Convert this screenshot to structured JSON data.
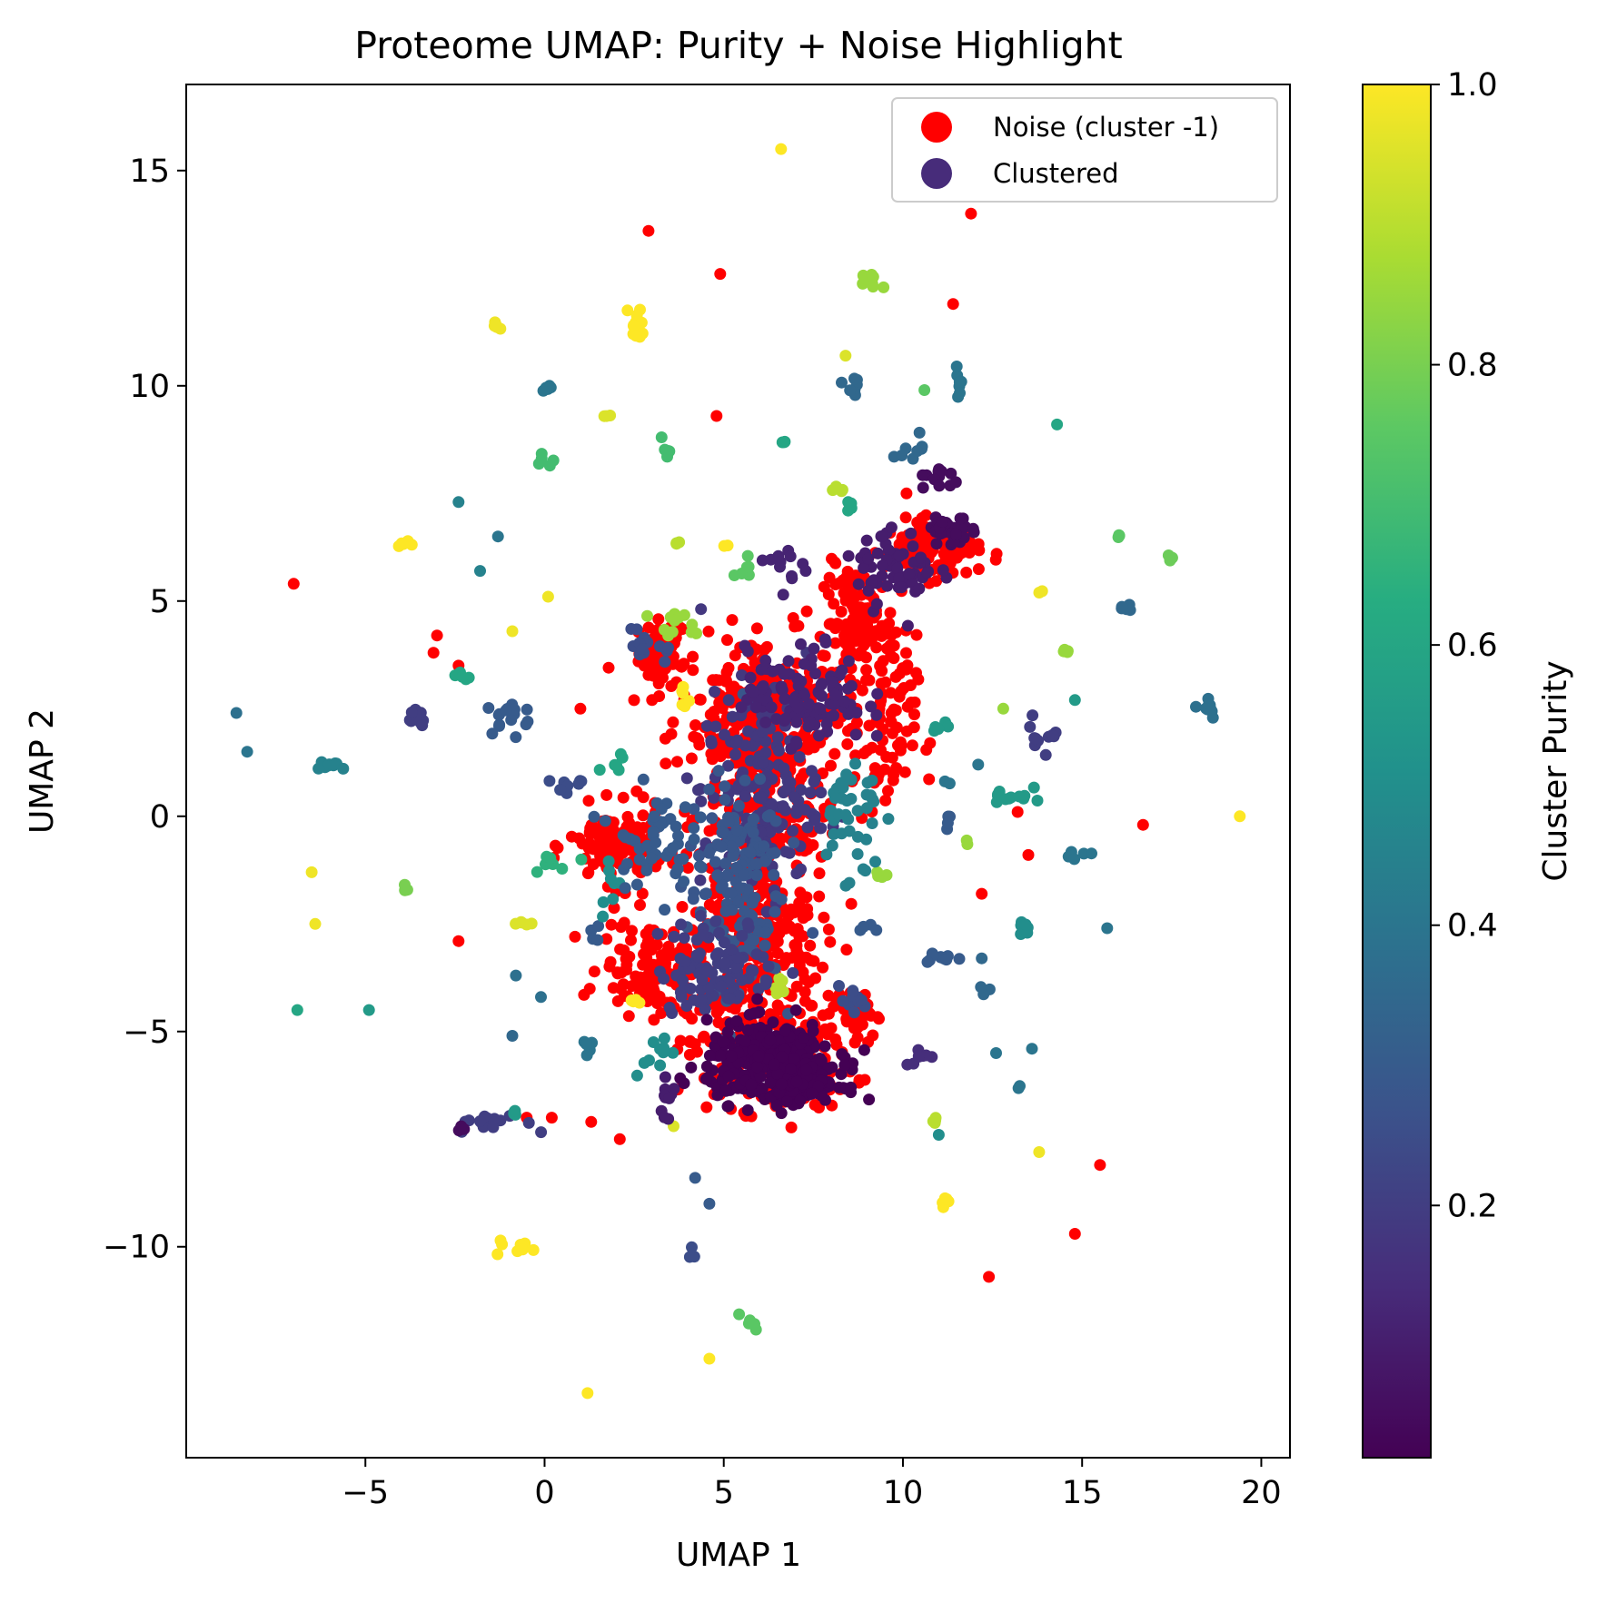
{
  "chart_data": {
    "type": "scatter",
    "title": "Proteome UMAP: Purity + Noise Highlight",
    "xlabel": "UMAP 1",
    "ylabel": "UMAP 2",
    "xlim": [
      -10.0,
      20.8
    ],
    "ylim": [
      -14.9,
      17.0
    ],
    "xticks": [
      -5,
      0,
      5,
      10,
      15,
      20
    ],
    "yticks": [
      -10,
      -5,
      0,
      5,
      10,
      15
    ],
    "xtick_labels": [
      "−5",
      "0",
      "5",
      "10",
      "15",
      "20"
    ],
    "ytick_labels": [
      "−10",
      "−5",
      "0",
      "5",
      "10",
      "15"
    ],
    "grid": false,
    "legend_position": "top-right",
    "legend": [
      {
        "label": "Noise (cluster -1)",
        "color": "#ff0000"
      },
      {
        "label": "Clustered",
        "color": "#472c7a"
      }
    ],
    "colorbar": {
      "label": "Cluster Purity",
      "range": [
        0.02,
        1.0
      ],
      "ticks": [
        0.2,
        0.4,
        0.6,
        0.8,
        1.0
      ],
      "tick_labels": [
        "0.2",
        "0.4",
        "0.6",
        "0.8",
        "1.0"
      ],
      "colormap": "viridis"
    },
    "noise_color": "#ff0000",
    "noise_regions": [
      {
        "cx": 3.3,
        "cy": 3.8,
        "rx": 0.6,
        "ry": 0.7,
        "n": 60
      },
      {
        "cx": 6.0,
        "cy": 2.5,
        "rx": 2.2,
        "ry": 1.5,
        "n": 220
      },
      {
        "cx": 6.2,
        "cy": 0.0,
        "rx": 1.8,
        "ry": 2.2,
        "n": 260
      },
      {
        "cx": 6.0,
        "cy": -3.0,
        "rx": 1.5,
        "ry": 1.5,
        "n": 200
      },
      {
        "cx": 6.3,
        "cy": -5.5,
        "rx": 2.1,
        "ry": 1.2,
        "n": 240
      },
      {
        "cx": 8.8,
        "cy": 4.5,
        "rx": 0.9,
        "ry": 1.2,
        "n": 120
      },
      {
        "cx": 10.8,
        "cy": 6.2,
        "rx": 1.2,
        "ry": 0.6,
        "n": 120
      },
      {
        "cx": 2.0,
        "cy": -0.7,
        "rx": 1.2,
        "ry": 0.8,
        "n": 120
      },
      {
        "cx": 3.0,
        "cy": -3.5,
        "rx": 1.3,
        "ry": 1.0,
        "n": 110
      },
      {
        "cx": 8.7,
        "cy": -4.5,
        "rx": 0.5,
        "ry": 0.5,
        "n": 40
      },
      {
        "cx": 9.5,
        "cy": 2.0,
        "rx": 0.8,
        "ry": 2.0,
        "n": 80
      }
    ],
    "noise_points": [
      {
        "x": -7.0,
        "y": 5.4
      },
      {
        "x": -3.0,
        "y": 4.2
      },
      {
        "x": -3.1,
        "y": 3.8
      },
      {
        "x": -2.4,
        "y": 3.5
      },
      {
        "x": -2.4,
        "y": -2.9
      },
      {
        "x": 2.9,
        "y": 13.6
      },
      {
        "x": 4.9,
        "y": 12.6
      },
      {
        "x": 4.8,
        "y": 9.3
      },
      {
        "x": 11.4,
        "y": 11.9
      },
      {
        "x": 11.9,
        "y": 14.0
      },
      {
        "x": 8.1,
        "y": 5.9
      },
      {
        "x": 10.1,
        "y": 7.5
      },
      {
        "x": 16.7,
        "y": -0.2
      },
      {
        "x": 13.5,
        "y": -0.9
      },
      {
        "x": 13.2,
        "y": 0.1
      },
      {
        "x": 12.2,
        "y": -1.8
      },
      {
        "x": 15.5,
        "y": -8.1
      },
      {
        "x": 14.8,
        "y": -9.7
      },
      {
        "x": 12.4,
        "y": -10.7
      },
      {
        "x": 1.3,
        "y": -7.1
      },
      {
        "x": 2.1,
        "y": -7.5
      },
      {
        "x": 0.2,
        "y": -7.0
      },
      {
        "x": -0.5,
        "y": -7.0
      },
      {
        "x": 5.2,
        "y": -6.8
      },
      {
        "x": 1.0,
        "y": 2.5
      },
      {
        "x": 3.0,
        "y": 2.7
      }
    ],
    "clustered_groups": [
      {
        "cx": 6.6,
        "cy": 15.5,
        "rx": 0.05,
        "ry": 0.05,
        "n": 1,
        "purity": 1.0
      },
      {
        "cx": 2.6,
        "cy": 11.4,
        "rx": 0.2,
        "ry": 0.4,
        "n": 12,
        "purity": 1.0
      },
      {
        "cx": -1.4,
        "cy": 11.4,
        "rx": 0.2,
        "ry": 0.1,
        "n": 5,
        "purity": 0.98
      },
      {
        "cx": 9.0,
        "cy": 12.3,
        "rx": 0.4,
        "ry": 0.3,
        "n": 8,
        "purity": 0.85
      },
      {
        "cx": 0.1,
        "cy": 10.0,
        "rx": 0.15,
        "ry": 0.15,
        "n": 5,
        "purity": 0.4
      },
      {
        "cx": 8.6,
        "cy": 10.0,
        "rx": 0.3,
        "ry": 0.4,
        "n": 8,
        "purity": 0.35
      },
      {
        "cx": 11.6,
        "cy": 10.1,
        "rx": 0.2,
        "ry": 0.3,
        "n": 8,
        "purity": 0.4
      },
      {
        "cx": 10.6,
        "cy": 9.9,
        "rx": 0.05,
        "ry": 0.05,
        "n": 1,
        "purity": 0.75
      },
      {
        "cx": 8.4,
        "cy": 10.7,
        "rx": 0.05,
        "ry": 0.05,
        "n": 1,
        "purity": 0.95
      },
      {
        "cx": 1.8,
        "cy": 9.3,
        "rx": 0.1,
        "ry": 0.05,
        "n": 3,
        "purity": 0.95
      },
      {
        "cx": 3.4,
        "cy": 8.5,
        "rx": 0.1,
        "ry": 0.3,
        "n": 6,
        "purity": 0.7
      },
      {
        "cx": 0.0,
        "cy": 8.3,
        "rx": 0.2,
        "ry": 0.15,
        "n": 5,
        "purity": 0.7
      },
      {
        "cx": 6.6,
        "cy": 8.7,
        "rx": 0.15,
        "ry": 0.05,
        "n": 3,
        "purity": 0.6
      },
      {
        "cx": 14.3,
        "cy": 9.1,
        "rx": 0.05,
        "ry": 0.05,
        "n": 1,
        "purity": 0.6
      },
      {
        "cx": 10.3,
        "cy": 8.6,
        "rx": 0.3,
        "ry": 0.3,
        "n": 8,
        "purity": 0.35
      },
      {
        "cx": 11.0,
        "cy": 7.8,
        "rx": 0.5,
        "ry": 0.3,
        "n": 12,
        "purity": 0.05
      },
      {
        "cx": 8.2,
        "cy": 7.6,
        "rx": 0.2,
        "ry": 0.1,
        "n": 4,
        "purity": 0.9
      },
      {
        "cx": 8.5,
        "cy": 7.3,
        "rx": 0.15,
        "ry": 0.15,
        "n": 4,
        "purity": 0.6
      },
      {
        "cx": -2.4,
        "cy": 7.3,
        "rx": 0.05,
        "ry": 0.05,
        "n": 1,
        "purity": 0.45
      },
      {
        "cx": -3.9,
        "cy": 6.3,
        "rx": 0.2,
        "ry": 0.15,
        "n": 6,
        "purity": 1.0
      },
      {
        "cx": -1.3,
        "cy": 6.5,
        "rx": 0.05,
        "ry": 0.05,
        "n": 1,
        "purity": 0.4
      },
      {
        "cx": 3.7,
        "cy": 6.4,
        "rx": 0.1,
        "ry": 0.1,
        "n": 3,
        "purity": 0.9
      },
      {
        "cx": 5.0,
        "cy": 6.3,
        "rx": 0.1,
        "ry": 0.05,
        "n": 2,
        "purity": 1.0
      },
      {
        "cx": 5.6,
        "cy": 5.7,
        "rx": 0.3,
        "ry": 0.3,
        "n": 6,
        "purity": 0.75
      },
      {
        "cx": 6.8,
        "cy": 5.8,
        "rx": 0.5,
        "ry": 0.5,
        "n": 12,
        "purity": 0.12
      },
      {
        "cx": -1.8,
        "cy": 5.7,
        "rx": 0.05,
        "ry": 0.05,
        "n": 1,
        "purity": 0.45
      },
      {
        "cx": 0.1,
        "cy": 5.1,
        "rx": 0.05,
        "ry": 0.05,
        "n": 1,
        "purity": 0.98
      },
      {
        "cx": -0.9,
        "cy": 4.3,
        "rx": 0.05,
        "ry": 0.05,
        "n": 1,
        "purity": 0.98
      },
      {
        "cx": 13.9,
        "cy": 5.2,
        "rx": 0.1,
        "ry": 0.05,
        "n": 2,
        "purity": 0.98
      },
      {
        "cx": 16.1,
        "cy": 6.5,
        "rx": 0.1,
        "ry": 0.1,
        "n": 3,
        "purity": 0.75
      },
      {
        "cx": 17.5,
        "cy": 6.0,
        "rx": 0.15,
        "ry": 0.1,
        "n": 3,
        "purity": 0.78
      },
      {
        "cx": 16.2,
        "cy": 4.9,
        "rx": 0.2,
        "ry": 0.2,
        "n": 5,
        "purity": 0.35
      },
      {
        "cx": 14.5,
        "cy": 3.8,
        "rx": 0.2,
        "ry": 0.1,
        "n": 4,
        "purity": 0.85
      },
      {
        "cx": 14.8,
        "cy": 2.7,
        "rx": 0.05,
        "ry": 0.05,
        "n": 1,
        "purity": 0.55
      },
      {
        "cx": 12.8,
        "cy": 2.5,
        "rx": 0.05,
        "ry": 0.05,
        "n": 1,
        "purity": 0.85
      },
      {
        "cx": 18.4,
        "cy": 2.6,
        "rx": 0.4,
        "ry": 0.3,
        "n": 10,
        "purity": 0.38
      },
      {
        "cx": 19.4,
        "cy": 0.0,
        "rx": 0.05,
        "ry": 0.05,
        "n": 1,
        "purity": 1.0
      },
      {
        "cx": -8.6,
        "cy": 2.4,
        "rx": 0.05,
        "ry": 0.05,
        "n": 1,
        "purity": 0.38
      },
      {
        "cx": -8.3,
        "cy": 1.5,
        "rx": 0.05,
        "ry": 0.05,
        "n": 1,
        "purity": 0.4
      },
      {
        "cx": -6.0,
        "cy": 1.2,
        "rx": 0.5,
        "ry": 0.1,
        "n": 12,
        "purity": 0.45
      },
      {
        "cx": -3.6,
        "cy": 2.3,
        "rx": 0.4,
        "ry": 0.3,
        "n": 10,
        "purity": 0.2
      },
      {
        "cx": -2.3,
        "cy": 3.2,
        "rx": 0.2,
        "ry": 0.15,
        "n": 5,
        "purity": 0.6
      },
      {
        "cx": -0.9,
        "cy": 2.4,
        "rx": 0.6,
        "ry": 0.4,
        "n": 16,
        "purity": 0.3
      },
      {
        "cx": -3.8,
        "cy": -1.7,
        "rx": 0.1,
        "ry": 0.1,
        "n": 3,
        "purity": 0.8
      },
      {
        "cx": -6.5,
        "cy": -1.3,
        "rx": 0.05,
        "ry": 0.05,
        "n": 1,
        "purity": 0.98
      },
      {
        "cx": -6.4,
        "cy": -2.5,
        "rx": 0.05,
        "ry": 0.05,
        "n": 1,
        "purity": 0.98
      },
      {
        "cx": -6.9,
        "cy": -4.5,
        "rx": 0.05,
        "ry": 0.05,
        "n": 1,
        "purity": 0.6
      },
      {
        "cx": -4.9,
        "cy": -4.5,
        "rx": 0.05,
        "ry": 0.05,
        "n": 1,
        "purity": 0.55
      },
      {
        "cx": -0.6,
        "cy": -2.5,
        "rx": 0.3,
        "ry": 0.05,
        "n": 6,
        "purity": 0.95
      },
      {
        "cx": -0.8,
        "cy": -3.7,
        "rx": 0.05,
        "ry": 0.05,
        "n": 1,
        "purity": 0.38
      },
      {
        "cx": -0.1,
        "cy": -4.2,
        "rx": 0.05,
        "ry": 0.05,
        "n": 1,
        "purity": 0.38
      },
      {
        "cx": -0.9,
        "cy": -5.1,
        "rx": 0.05,
        "ry": 0.05,
        "n": 1,
        "purity": 0.35
      },
      {
        "cx": -1.5,
        "cy": -7.1,
        "rx": 0.9,
        "ry": 0.2,
        "n": 18,
        "purity": 0.2
      },
      {
        "cx": -0.8,
        "cy": -6.9,
        "rx": 0.2,
        "ry": 0.1,
        "n": 4,
        "purity": 0.55
      },
      {
        "cx": -2.3,
        "cy": -7.3,
        "rx": 0.1,
        "ry": 0.1,
        "n": 3,
        "purity": 0.05
      },
      {
        "cx": -0.8,
        "cy": -10.0,
        "rx": 0.5,
        "ry": 0.2,
        "n": 8,
        "purity": 1.0
      },
      {
        "cx": 1.2,
        "cy": -13.4,
        "rx": 0.05,
        "ry": 0.05,
        "n": 1,
        "purity": 1.0
      },
      {
        "cx": 4.6,
        "cy": -12.6,
        "rx": 0.05,
        "ry": 0.05,
        "n": 1,
        "purity": 1.0
      },
      {
        "cx": 5.8,
        "cy": -11.8,
        "rx": 0.2,
        "ry": 0.2,
        "n": 5,
        "purity": 0.75
      },
      {
        "cx": 4.2,
        "cy": -10.1,
        "rx": 0.2,
        "ry": 0.15,
        "n": 3,
        "purity": 0.25
      },
      {
        "cx": 4.2,
        "cy": -8.4,
        "rx": 0.05,
        "ry": 0.05,
        "n": 1,
        "purity": 0.3
      },
      {
        "cx": 4.6,
        "cy": -9.0,
        "rx": 0.05,
        "ry": 0.05,
        "n": 1,
        "purity": 0.3
      },
      {
        "cx": 3.6,
        "cy": -7.2,
        "rx": 0.05,
        "ry": 0.05,
        "n": 1,
        "purity": 0.95
      },
      {
        "cx": 11.1,
        "cy": -8.9,
        "rx": 0.2,
        "ry": 0.2,
        "n": 6,
        "purity": 1.0
      },
      {
        "cx": 13.8,
        "cy": -7.8,
        "rx": 0.05,
        "ry": 0.05,
        "n": 1,
        "purity": 0.98
      },
      {
        "cx": 10.9,
        "cy": -7.1,
        "rx": 0.2,
        "ry": 0.1,
        "n": 4,
        "purity": 0.9
      },
      {
        "cx": 11.0,
        "cy": -7.4,
        "rx": 0.05,
        "ry": 0.05,
        "n": 1,
        "purity": 0.5
      },
      {
        "cx": 10.6,
        "cy": -5.6,
        "rx": 0.5,
        "ry": 0.2,
        "n": 8,
        "purity": 0.15
      },
      {
        "cx": 12.6,
        "cy": -5.5,
        "rx": 0.05,
        "ry": 0.05,
        "n": 1,
        "purity": 0.4
      },
      {
        "cx": 13.6,
        "cy": -5.4,
        "rx": 0.05,
        "ry": 0.05,
        "n": 1,
        "purity": 0.4
      },
      {
        "cx": 13.3,
        "cy": -6.3,
        "rx": 0.15,
        "ry": 0.05,
        "n": 2,
        "purity": 0.4
      },
      {
        "cx": 12.3,
        "cy": -4.0,
        "rx": 0.15,
        "ry": 0.15,
        "n": 3,
        "purity": 0.35
      },
      {
        "cx": 12.2,
        "cy": -3.3,
        "rx": 0.05,
        "ry": 0.05,
        "n": 1,
        "purity": 0.35
      },
      {
        "cx": 11.0,
        "cy": -3.3,
        "rx": 0.6,
        "ry": 0.15,
        "n": 10,
        "purity": 0.3
      },
      {
        "cx": 13.4,
        "cy": -2.5,
        "rx": 0.2,
        "ry": 0.2,
        "n": 6,
        "purity": 0.5
      },
      {
        "cx": 15.7,
        "cy": -2.6,
        "rx": 0.05,
        "ry": 0.05,
        "n": 1,
        "purity": 0.4
      },
      {
        "cx": 14.9,
        "cy": -0.9,
        "rx": 0.4,
        "ry": 0.2,
        "n": 6,
        "purity": 0.4
      },
      {
        "cx": 13.0,
        "cy": 0.5,
        "rx": 0.5,
        "ry": 0.3,
        "n": 12,
        "purity": 0.55
      },
      {
        "cx": 13.7,
        "cy": 1.8,
        "rx": 0.3,
        "ry": 0.4,
        "n": 8,
        "purity": 0.2
      },
      {
        "cx": 14.2,
        "cy": 1.9,
        "rx": 0.1,
        "ry": 0.2,
        "n": 4,
        "purity": 0.2
      },
      {
        "cx": 11.3,
        "cy": 0.8,
        "rx": 0.1,
        "ry": 0.05,
        "n": 2,
        "purity": 0.4
      },
      {
        "cx": 12.1,
        "cy": 1.2,
        "rx": 0.05,
        "ry": 0.05,
        "n": 1,
        "purity": 0.4
      },
      {
        "cx": 11.8,
        "cy": -0.6,
        "rx": 0.1,
        "ry": 0.05,
        "n": 2,
        "purity": 0.85
      },
      {
        "cx": 11.3,
        "cy": 0.0,
        "rx": 0.2,
        "ry": 0.2,
        "n": 4,
        "purity": 0.3
      },
      {
        "cx": 11.0,
        "cy": 2.1,
        "rx": 0.3,
        "ry": 0.1,
        "n": 5,
        "purity": 0.55
      },
      {
        "cx": 9.4,
        "cy": -1.4,
        "rx": 0.2,
        "ry": 0.1,
        "n": 4,
        "purity": 0.85
      },
      {
        "cx": 9.0,
        "cy": -2.6,
        "rx": 0.3,
        "ry": 0.1,
        "n": 4,
        "purity": 0.3
      },
      {
        "cx": 8.6,
        "cy": -4.3,
        "rx": 0.5,
        "ry": 0.3,
        "n": 10,
        "purity": 0.25
      },
      {
        "cx": 6.4,
        "cy": -3.9,
        "rx": 0.3,
        "ry": 0.3,
        "n": 8,
        "purity": 0.9
      },
      {
        "cx": 2.5,
        "cy": -4.3,
        "rx": 0.2,
        "ry": 0.1,
        "n": 4,
        "purity": 1.0
      },
      {
        "cx": 1.4,
        "cy": -2.8,
        "rx": 0.3,
        "ry": 0.3,
        "n": 4,
        "purity": 0.3
      },
      {
        "cx": 1.2,
        "cy": -5.3,
        "rx": 0.4,
        "ry": 0.3,
        "n": 6,
        "purity": 0.4
      },
      {
        "cx": 3.4,
        "cy": -6.5,
        "rx": 0.3,
        "ry": 0.6,
        "n": 10,
        "purity": 0.1
      },
      {
        "cx": 3.0,
        "cy": -5.5,
        "rx": 0.5,
        "ry": 0.4,
        "n": 10,
        "purity": 0.5
      },
      {
        "cx": 0.3,
        "cy": -1.0,
        "rx": 0.5,
        "ry": 0.3,
        "n": 8,
        "purity": 0.65
      },
      {
        "cx": 0.6,
        "cy": 0.7,
        "rx": 0.4,
        "ry": 0.3,
        "n": 8,
        "purity": 0.25
      },
      {
        "cx": 2.0,
        "cy": 1.3,
        "rx": 0.3,
        "ry": 0.3,
        "n": 6,
        "purity": 0.6
      },
      {
        "cx": 1.8,
        "cy": -1.5,
        "rx": 0.3,
        "ry": 0.5,
        "n": 8,
        "purity": 0.5
      },
      {
        "cx": 3.8,
        "cy": 2.8,
        "rx": 0.2,
        "ry": 0.2,
        "n": 6,
        "purity": 1.0
      },
      {
        "cx": 3.8,
        "cy": 4.4,
        "rx": 0.7,
        "ry": 0.3,
        "n": 12,
        "purity": 0.85
      },
      {
        "cx": 3.0,
        "cy": 4.0,
        "rx": 0.6,
        "ry": 0.5,
        "n": 14,
        "purity": 0.25
      },
      {
        "cx": 6.0,
        "cy": 0.5,
        "rx": 1.5,
        "ry": 2.2,
        "n": 160,
        "purity": 0.18
      },
      {
        "cx": 5.3,
        "cy": -1.5,
        "rx": 1.2,
        "ry": 2.2,
        "n": 140,
        "purity": 0.28
      },
      {
        "cx": 7.3,
        "cy": 2.8,
        "rx": 1.5,
        "ry": 1.0,
        "n": 120,
        "purity": 0.12
      },
      {
        "cx": 4.8,
        "cy": -3.5,
        "rx": 1.5,
        "ry": 1.0,
        "n": 100,
        "purity": 0.2
      },
      {
        "cx": 3.0,
        "cy": -0.5,
        "rx": 1.0,
        "ry": 1.0,
        "n": 50,
        "purity": 0.3
      },
      {
        "cx": 8.5,
        "cy": 0.0,
        "rx": 0.8,
        "ry": 1.5,
        "n": 40,
        "purity": 0.45
      },
      {
        "cx": 9.8,
        "cy": 5.8,
        "rx": 1.0,
        "ry": 0.8,
        "n": 60,
        "purity": 0.1
      },
      {
        "cx": 11.4,
        "cy": 6.6,
        "rx": 0.6,
        "ry": 0.3,
        "n": 30,
        "purity": 0.05
      },
      {
        "cx": 6.3,
        "cy": -5.7,
        "rx": 1.6,
        "ry": 0.8,
        "n": 320,
        "purity": 0.02
      },
      {
        "cx": 7.3,
        "cy": -6.2,
        "rx": 1.0,
        "ry": 0.4,
        "n": 90,
        "purity": 0.02
      }
    ]
  }
}
